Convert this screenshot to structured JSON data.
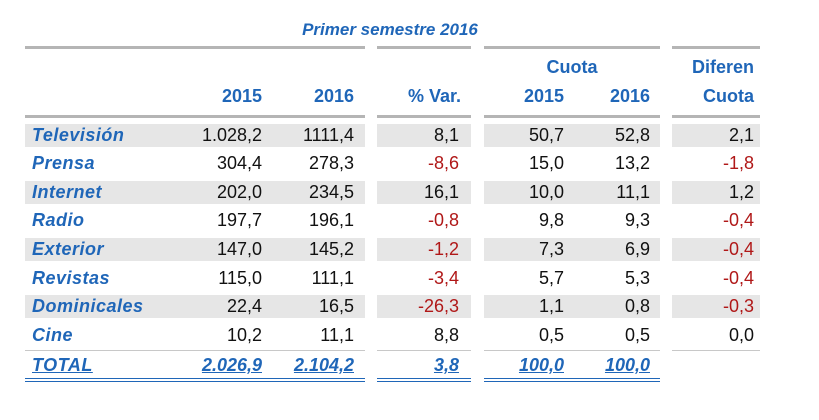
{
  "title": "Primer semestre 2016",
  "headers": {
    "cuota": "Cuota",
    "diferen": "Diferen",
    "y2015": "2015",
    "y2016": "2016",
    "var": "% Var.",
    "cuota2015": "2015",
    "cuota2016": "2016",
    "cuota_diff": "Cuota"
  },
  "rows": [
    {
      "label": "Televisión",
      "v2015": "1.028,2",
      "v2016": "1111,4",
      "var": "8,1",
      "c2015": "50,7",
      "c2016": "52,8",
      "diff": "2,1"
    },
    {
      "label": "Prensa",
      "v2015": "304,4",
      "v2016": "278,3",
      "var": "-8,6",
      "c2015": "15,0",
      "c2016": "13,2",
      "diff": "-1,8"
    },
    {
      "label": "Internet",
      "v2015": "202,0",
      "v2016": "234,5",
      "var": "16,1",
      "c2015": "10,0",
      "c2016": "11,1",
      "diff": "1,2"
    },
    {
      "label": "Radio",
      "v2015": "197,7",
      "v2016": "196,1",
      "var": "-0,8",
      "c2015": "9,8",
      "c2016": "9,3",
      "diff": "-0,4"
    },
    {
      "label": "Exterior",
      "v2015": "147,0",
      "v2016": "145,2",
      "var": "-1,2",
      "c2015": "7,3",
      "c2016": "6,9",
      "diff": "-0,4"
    },
    {
      "label": "Revistas",
      "v2015": "115,0",
      "v2016": "111,1",
      "var": "-3,4",
      "c2015": "5,7",
      "c2016": "5,3",
      "diff": "-0,4"
    },
    {
      "label": "Dominicales",
      "v2015": "22,4",
      "v2016": "16,5",
      "var": "-26,3",
      "c2015": "1,1",
      "c2016": "0,8",
      "diff": "-0,3"
    },
    {
      "label": "Cine",
      "v2015": "10,2",
      "v2016": "11,1",
      "var": "8,8",
      "c2015": "0,5",
      "c2016": "0,5",
      "diff": "0,0"
    }
  ],
  "total": {
    "label": "TOTAL",
    "v2015": "2.026,9",
    "v2016": "2.104,2",
    "var": "3,8",
    "c2015": "100,0",
    "c2016": "100,0"
  },
  "colors": {
    "accent": "#1f66b8",
    "negative": "#b01818",
    "band": "#e6e6e6"
  }
}
